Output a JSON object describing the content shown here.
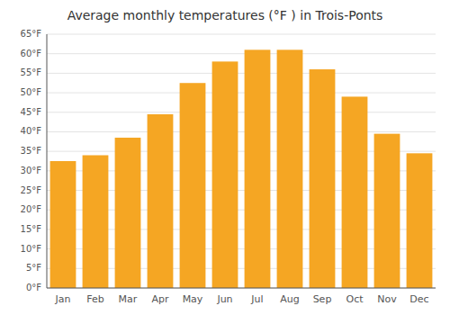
{
  "chart_data": {
    "type": "bar",
    "title": "Average monthly temperatures (°F ) in Trois-Ponts",
    "categories": [
      "Jan",
      "Feb",
      "Mar",
      "Apr",
      "May",
      "Jun",
      "Jul",
      "Aug",
      "Sep",
      "Oct",
      "Nov",
      "Dec"
    ],
    "values": [
      32.5,
      34.0,
      38.5,
      44.5,
      52.5,
      58.0,
      61.0,
      61.0,
      56.0,
      49.0,
      39.5,
      34.5
    ],
    "color": "#F5A623",
    "ylim": [
      0,
      65
    ],
    "yticks": [
      {
        "value": 0,
        "label": "0°F"
      },
      {
        "value": 5,
        "label": "5°F"
      },
      {
        "value": 10,
        "label": "10°F"
      },
      {
        "value": 15,
        "label": "15°F"
      },
      {
        "value": 20,
        "label": "20°F"
      },
      {
        "value": 25,
        "label": "25°F"
      },
      {
        "value": 30,
        "label": "30°F"
      },
      {
        "value": 35,
        "label": "35°F"
      },
      {
        "value": 40,
        "label": "40°F"
      },
      {
        "value": 45,
        "label": "45°F"
      },
      {
        "value": 50,
        "label": "50°F"
      },
      {
        "value": 55,
        "label": "55°F"
      },
      {
        "value": 60,
        "label": "60°F"
      },
      {
        "value": 65,
        "label": "65°F"
      }
    ],
    "grid": true
  }
}
